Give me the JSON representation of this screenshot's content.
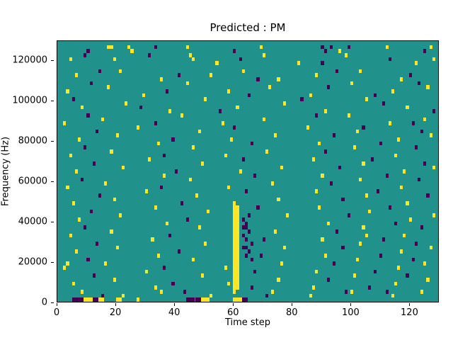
{
  "chart_data": {
    "type": "heatmap",
    "title": "Predicted : PM",
    "xlabel": "Time step",
    "ylabel": "Frequency (Hz)",
    "x_max": 130,
    "y_max": 130000,
    "bin_hz": 2000,
    "x_ticks": [
      0,
      20,
      40,
      60,
      80,
      100,
      120
    ],
    "y_ticks": [
      0,
      20000,
      40000,
      60000,
      80000,
      100000,
      120000
    ],
    "legend": "none",
    "grid": false,
    "colors": {
      "background": "#21918c",
      "high": "#fde725",
      "low": "#440154"
    },
    "cells": {
      "yellow": [
        [
          17,
          63
        ],
        [
          18,
          63
        ],
        [
          24,
          63
        ],
        [
          25,
          62
        ],
        [
          44,
          63
        ],
        [
          69,
          63
        ],
        [
          96,
          62
        ],
        [
          112,
          63
        ],
        [
          127,
          63
        ],
        [
          4,
          60
        ],
        [
          19,
          60
        ],
        [
          45,
          61
        ],
        [
          46,
          60
        ],
        [
          54,
          59
        ],
        [
          70,
          61
        ],
        [
          82,
          59
        ],
        [
          98,
          61
        ],
        [
          122,
          59
        ],
        [
          128,
          60
        ],
        [
          6,
          56
        ],
        [
          21,
          57
        ],
        [
          35,
          55
        ],
        [
          52,
          56
        ],
        [
          63,
          57
        ],
        [
          75,
          55
        ],
        [
          88,
          56
        ],
        [
          103,
          57
        ],
        [
          117,
          55
        ],
        [
          3,
          52
        ],
        [
          17,
          53
        ],
        [
          29,
          51
        ],
        [
          44,
          54
        ],
        [
          58,
          52
        ],
        [
          72,
          53
        ],
        [
          86,
          51
        ],
        [
          100,
          54
        ],
        [
          114,
          52
        ],
        [
          126,
          53
        ],
        [
          8,
          48
        ],
        [
          23,
          49
        ],
        [
          38,
          47
        ],
        [
          50,
          50
        ],
        [
          61,
          48
        ],
        [
          77,
          49
        ],
        [
          91,
          47
        ],
        [
          105,
          50
        ],
        [
          119,
          48
        ],
        [
          2,
          44
        ],
        [
          15,
          45
        ],
        [
          27,
          43
        ],
        [
          42,
          46
        ],
        [
          56,
          44
        ],
        [
          70,
          45
        ],
        [
          85,
          43
        ],
        [
          99,
          46
        ],
        [
          113,
          44
        ],
        [
          125,
          45
        ],
        [
          7,
          40
        ],
        [
          20,
          41
        ],
        [
          34,
          39
        ],
        [
          48,
          42
        ],
        [
          59,
          40
        ],
        [
          74,
          41
        ],
        [
          89,
          39
        ],
        [
          102,
          42
        ],
        [
          116,
          40
        ],
        [
          127,
          41
        ],
        [
          4,
          36
        ],
        [
          18,
          37
        ],
        [
          31,
          35
        ],
        [
          46,
          38
        ],
        [
          57,
          36
        ],
        [
          71,
          37
        ],
        [
          87,
          35
        ],
        [
          101,
          38
        ],
        [
          115,
          36
        ],
        [
          6,
          32
        ],
        [
          22,
          33
        ],
        [
          36,
          31
        ],
        [
          49,
          34
        ],
        [
          62,
          32
        ],
        [
          76,
          33
        ],
        [
          90,
          31
        ],
        [
          104,
          34
        ],
        [
          118,
          32
        ],
        [
          128,
          33
        ],
        [
          3,
          28
        ],
        [
          16,
          29
        ],
        [
          30,
          27
        ],
        [
          45,
          30
        ],
        [
          58,
          28
        ],
        [
          73,
          29
        ],
        [
          88,
          27
        ],
        [
          103,
          30
        ],
        [
          117,
          28
        ],
        [
          5,
          24
        ],
        [
          19,
          25
        ],
        [
          33,
          23
        ],
        [
          47,
          26
        ],
        [
          75,
          25
        ],
        [
          89,
          23
        ],
        [
          105,
          26
        ],
        [
          119,
          24
        ],
        [
          7,
          20
        ],
        [
          21,
          21
        ],
        [
          37,
          19
        ],
        [
          51,
          22
        ],
        [
          78,
          21
        ],
        [
          92,
          19
        ],
        [
          106,
          22
        ],
        [
          120,
          20
        ],
        [
          128,
          21
        ],
        [
          4,
          16
        ],
        [
          18,
          17
        ],
        [
          32,
          15
        ],
        [
          48,
          18
        ],
        [
          74,
          17
        ],
        [
          90,
          15
        ],
        [
          104,
          18
        ],
        [
          105,
          16
        ],
        [
          118,
          16
        ],
        [
          6,
          12
        ],
        [
          20,
          13
        ],
        [
          34,
          11
        ],
        [
          50,
          14
        ],
        [
          77,
          13
        ],
        [
          91,
          11
        ],
        [
          103,
          14
        ],
        [
          117,
          12
        ],
        [
          127,
          13
        ],
        [
          2,
          8
        ],
        [
          3,
          9
        ],
        [
          16,
          9
        ],
        [
          30,
          7
        ],
        [
          46,
          10
        ],
        [
          57,
          8
        ],
        [
          76,
          9
        ],
        [
          88,
          7
        ],
        [
          102,
          10
        ],
        [
          116,
          8
        ],
        [
          125,
          9
        ],
        [
          5,
          4
        ],
        [
          19,
          5
        ],
        [
          33,
          3
        ],
        [
          49,
          6
        ],
        [
          58,
          4
        ],
        [
          75,
          5
        ],
        [
          87,
          3
        ],
        [
          101,
          6
        ],
        [
          115,
          4
        ],
        [
          126,
          5
        ],
        [
          8,
          2
        ],
        [
          22,
          1
        ],
        [
          35,
          2
        ],
        [
          52,
          1
        ],
        [
          73,
          2
        ],
        [
          86,
          1
        ],
        [
          100,
          2
        ],
        [
          114,
          1
        ],
        [
          124,
          2
        ],
        [
          9,
          0
        ],
        [
          10,
          0
        ],
        [
          11,
          0
        ],
        [
          14,
          0
        ],
        [
          15,
          0
        ],
        [
          20,
          0
        ],
        [
          21,
          0
        ],
        [
          27,
          0
        ],
        [
          49,
          0
        ],
        [
          50,
          0
        ],
        [
          51,
          0
        ],
        [
          60,
          0
        ],
        [
          61,
          0
        ],
        [
          62,
          0
        ],
        [
          60,
          2
        ],
        [
          60,
          3
        ],
        [
          60,
          4
        ],
        [
          60,
          5
        ],
        [
          60,
          6
        ],
        [
          60,
          7
        ],
        [
          60,
          8
        ],
        [
          60,
          9
        ],
        [
          60,
          10
        ],
        [
          60,
          11
        ],
        [
          60,
          12
        ],
        [
          60,
          13
        ],
        [
          60,
          14
        ],
        [
          60,
          15
        ],
        [
          60,
          16
        ],
        [
          60,
          17
        ],
        [
          60,
          18
        ],
        [
          60,
          19
        ],
        [
          60,
          20
        ],
        [
          60,
          21
        ],
        [
          60,
          22
        ],
        [
          60,
          23
        ],
        [
          60,
          24
        ],
        [
          61,
          3
        ],
        [
          61,
          4
        ],
        [
          61,
          5
        ],
        [
          61,
          6
        ],
        [
          61,
          7
        ],
        [
          61,
          8
        ],
        [
          61,
          9
        ],
        [
          61,
          10
        ],
        [
          61,
          11
        ],
        [
          61,
          12
        ],
        [
          61,
          13
        ],
        [
          61,
          14
        ],
        [
          61,
          15
        ],
        [
          61,
          16
        ],
        [
          61,
          17
        ],
        [
          61,
          18
        ],
        [
          61,
          19
        ],
        [
          61,
          20
        ],
        [
          61,
          21
        ],
        [
          61,
          22
        ],
        [
          61,
          23
        ]
      ],
      "purple": [
        [
          10,
          62
        ],
        [
          33,
          63
        ],
        [
          60,
          62
        ],
        [
          90,
          63
        ],
        [
          91,
          62
        ],
        [
          93,
          63
        ],
        [
          99,
          63
        ],
        [
          125,
          62
        ],
        [
          9,
          61
        ],
        [
          31,
          61
        ],
        [
          62,
          60
        ],
        [
          90,
          59
        ],
        [
          113,
          60
        ],
        [
          14,
          57
        ],
        [
          41,
          56
        ],
        [
          68,
          55
        ],
        [
          95,
          57
        ],
        [
          120,
          56
        ],
        [
          11,
          54
        ],
        [
          37,
          52
        ],
        [
          65,
          51
        ],
        [
          92,
          53
        ],
        [
          108,
          51
        ],
        [
          123,
          54
        ],
        [
          5,
          50
        ],
        [
          28,
          48
        ],
        [
          55,
          47
        ],
        [
          83,
          50
        ],
        [
          111,
          49
        ],
        [
          128,
          47
        ],
        [
          10,
          46
        ],
        [
          33,
          44
        ],
        [
          60,
          43
        ],
        [
          88,
          46
        ],
        [
          104,
          43
        ],
        [
          121,
          44
        ],
        [
          13,
          42
        ],
        [
          39,
          40
        ],
        [
          66,
          39
        ],
        [
          94,
          41
        ],
        [
          110,
          39
        ],
        [
          124,
          42
        ],
        [
          9,
          38
        ],
        [
          36,
          36
        ],
        [
          63,
          35
        ],
        [
          91,
          37
        ],
        [
          107,
          35
        ],
        [
          122,
          38
        ],
        [
          12,
          34
        ],
        [
          40,
          32
        ],
        [
          67,
          31
        ],
        [
          96,
          33
        ],
        [
          112,
          31
        ],
        [
          125,
          34
        ],
        [
          8,
          30
        ],
        [
          35,
          28
        ],
        [
          64,
          27
        ],
        [
          93,
          29
        ],
        [
          109,
          27
        ],
        [
          123,
          30
        ],
        [
          14,
          26
        ],
        [
          42,
          24
        ],
        [
          68,
          23
        ],
        [
          97,
          25
        ],
        [
          113,
          23
        ],
        [
          126,
          26
        ],
        [
          63,
          20
        ],
        [
          63,
          18
        ],
        [
          63,
          16
        ],
        [
          63,
          13
        ],
        [
          64,
          19
        ],
        [
          64,
          18
        ],
        [
          64,
          15
        ],
        [
          64,
          13
        ],
        [
          64,
          11
        ],
        [
          65,
          21
        ],
        [
          65,
          17
        ],
        [
          65,
          12
        ],
        [
          66,
          14
        ],
        [
          66,
          10
        ],
        [
          11,
          22
        ],
        [
          44,
          20
        ],
        [
          99,
          21
        ],
        [
          115,
          19
        ],
        [
          9,
          18
        ],
        [
          38,
          16
        ],
        [
          70,
          15
        ],
        [
          95,
          17
        ],
        [
          111,
          15
        ],
        [
          124,
          18
        ],
        [
          13,
          14
        ],
        [
          41,
          12
        ],
        [
          69,
          11
        ],
        [
          97,
          13
        ],
        [
          110,
          11
        ],
        [
          122,
          14
        ],
        [
          10,
          10
        ],
        [
          36,
          8
        ],
        [
          67,
          7
        ],
        [
          94,
          9
        ],
        [
          108,
          7
        ],
        [
          121,
          10
        ],
        [
          12,
          6
        ],
        [
          39,
          4
        ],
        [
          66,
          3
        ],
        [
          92,
          5
        ],
        [
          106,
          3
        ],
        [
          119,
          6
        ],
        [
          15,
          1
        ],
        [
          43,
          2
        ],
        [
          71,
          1
        ],
        [
          98,
          2
        ],
        [
          112,
          2
        ],
        [
          5,
          0
        ],
        [
          6,
          0
        ],
        [
          7,
          0
        ],
        [
          8,
          0
        ],
        [
          12,
          0
        ],
        [
          13,
          0
        ],
        [
          44,
          0
        ],
        [
          45,
          0
        ],
        [
          46,
          0
        ],
        [
          47,
          0
        ],
        [
          48,
          0
        ],
        [
          63,
          0
        ],
        [
          64,
          0
        ]
      ]
    }
  }
}
